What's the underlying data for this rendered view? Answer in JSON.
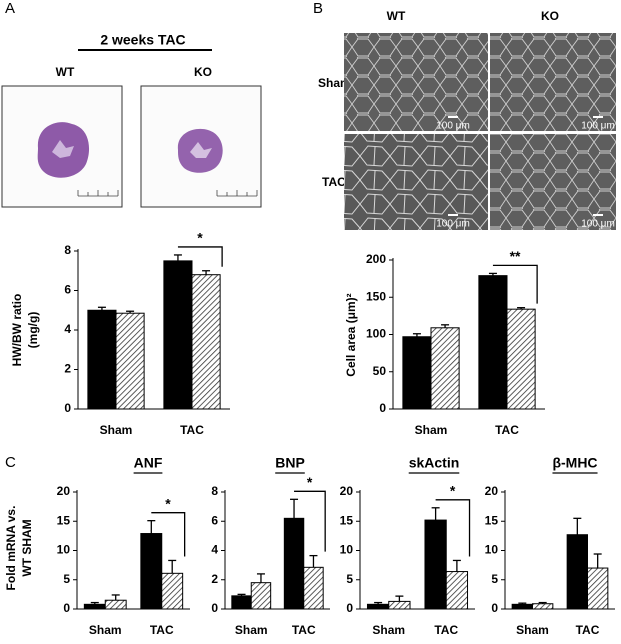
{
  "panel_a": {
    "label": "A",
    "heading": "2 weeks TAC",
    "columns": [
      "WT",
      "KO"
    ]
  },
  "panel_b": {
    "label": "B",
    "columns": [
      "WT",
      "KO"
    ],
    "rows": [
      "Sham",
      "TAC"
    ],
    "scale_bars": [
      "100 μm",
      "100 μm",
      "100 μm",
      "100 μm"
    ]
  },
  "panel_c": {
    "label": "C"
  },
  "chart_data": [
    {
      "type": "bar",
      "ylabel": [
        "HW/BW ratio",
        "(mg/g)"
      ],
      "categories": [
        "Sham",
        "TAC"
      ],
      "series": [
        {
          "color": "#000000",
          "values": [
            5.0,
            7.5
          ],
          "errors": [
            0.15,
            0.3
          ]
        },
        {
          "color": "#333333",
          "hatch": true,
          "values": [
            4.85,
            6.8
          ],
          "errors": [
            0.1,
            0.2
          ]
        }
      ],
      "ylim": [
        0,
        8
      ],
      "yticks": [
        0,
        2,
        4,
        6,
        8
      ],
      "annotation": "*"
    },
    {
      "type": "bar",
      "ylabel": [
        "Cell area (μm)²"
      ],
      "categories": [
        "Sham",
        "TAC"
      ],
      "series": [
        {
          "color": "#000000",
          "values": [
            97,
            179
          ],
          "errors": [
            4,
            3
          ]
        },
        {
          "color": "#333333",
          "hatch": true,
          "values": [
            109,
            134
          ],
          "errors": [
            4,
            2
          ]
        }
      ],
      "ylim": [
        0,
        200
      ],
      "yticks": [
        0,
        50,
        100,
        150,
        200
      ],
      "annotation": "**"
    },
    {
      "type": "bar",
      "title": "ANF",
      "ylabel": [
        "Fold mRNA vs.",
        "WT SHAM"
      ],
      "categories": [
        "Sham",
        "TAC"
      ],
      "series": [
        {
          "color": "#000000",
          "values": [
            0.8,
            12.9
          ],
          "errors": [
            0.3,
            2.2
          ]
        },
        {
          "color": "#333333",
          "hatch": true,
          "values": [
            1.5,
            6.1
          ],
          "errors": [
            0.9,
            2.2
          ]
        }
      ],
      "ylim": [
        0,
        20
      ],
      "yticks": [
        0,
        5,
        10,
        15,
        20
      ],
      "annotation": "*"
    },
    {
      "type": "bar",
      "title": "BNP",
      "categories": [
        "Sham",
        "TAC"
      ],
      "series": [
        {
          "color": "#000000",
          "values": [
            0.9,
            6.2
          ],
          "errors": [
            0.1,
            1.3
          ]
        },
        {
          "color": "#333333",
          "hatch": true,
          "values": [
            1.8,
            2.85
          ],
          "errors": [
            0.6,
            0.8
          ]
        }
      ],
      "ylim": [
        0,
        8
      ],
      "yticks": [
        0,
        2,
        4,
        6,
        8
      ],
      "annotation": "*"
    },
    {
      "type": "bar",
      "title": "skActin",
      "categories": [
        "Sham",
        "TAC"
      ],
      "series": [
        {
          "color": "#000000",
          "values": [
            0.8,
            15.2
          ],
          "errors": [
            0.3,
            2.1
          ]
        },
        {
          "color": "#333333",
          "hatch": true,
          "values": [
            1.3,
            6.4
          ],
          "errors": [
            0.9,
            1.9
          ]
        }
      ],
      "ylim": [
        0,
        20
      ],
      "yticks": [
        0,
        5,
        10,
        15,
        20
      ],
      "annotation": "*"
    },
    {
      "type": "bar",
      "title": "β-MHC",
      "categories": [
        "Sham",
        "TAC"
      ],
      "series": [
        {
          "color": "#000000",
          "values": [
            0.8,
            12.7
          ],
          "errors": [
            0.2,
            2.8
          ]
        },
        {
          "color": "#333333",
          "hatch": true,
          "values": [
            0.9,
            7.0
          ],
          "errors": [
            0.2,
            2.4
          ]
        }
      ],
      "ylim": [
        0,
        20
      ],
      "yticks": [
        0,
        5,
        10,
        15,
        20
      ]
    }
  ]
}
